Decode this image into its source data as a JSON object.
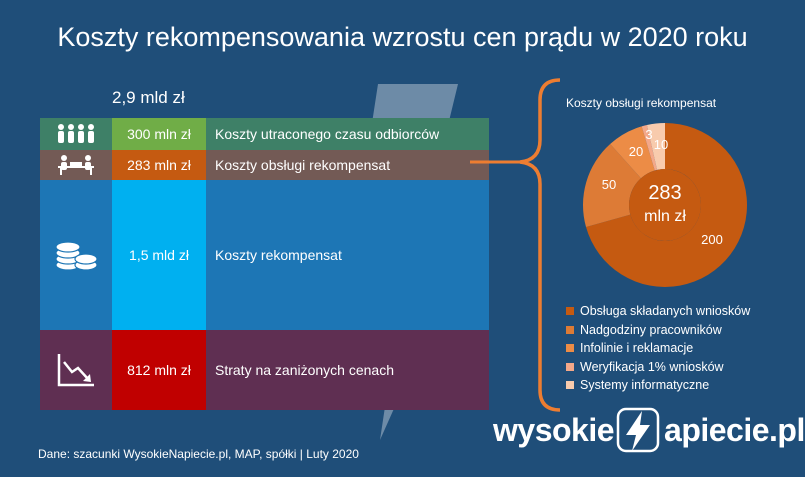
{
  "title": "Koszty rekompensowania wzrostu cen prądu w 2020 roku",
  "total": "2,9 mld zł",
  "rows": [
    {
      "icon": "people-icon",
      "value": "300 mln zł",
      "label": "Koszty utraconego czasu odbiorców",
      "row_color": "#3e8067",
      "value_color": "#70ad47"
    },
    {
      "icon": "office-workers-icon",
      "value": "283 mln zł",
      "label": "Koszty obsługi rekompensat",
      "row_color": "#735a55",
      "value_color": "#c55a11"
    },
    {
      "icon": "coins-icon",
      "value": "1,5 mld zł",
      "label": "Koszty rekompensat",
      "row_color": "#1d76b5",
      "value_color": "#00b0f0"
    },
    {
      "icon": "declining-chart-icon",
      "value": "812 mln zł",
      "label": "Straty na zaniżonych cenach",
      "row_color": "#5f2f52",
      "value_color": "#c00000"
    }
  ],
  "chart_data": {
    "type": "pie",
    "title": "Koszty obsługi rekompensat",
    "center_label": [
      "283",
      "mln zł"
    ],
    "categories": [
      "Obsługa składanych wniosków",
      "Nadgodziny pracowników",
      "Infolinie i reklamacje",
      "Weryfikacja 1% wniosków",
      "Systemy informatyczne"
    ],
    "values": [
      200,
      50,
      20,
      3,
      10
    ],
    "colors": [
      "#c55a11",
      "#dd7b36",
      "#ec8c46",
      "#f4a889",
      "#f8cbad"
    ],
    "legend_position": "bottom"
  },
  "source": "Dane: szacunki WysokieNapiecie.pl, MAP,  spółki |  Luty 2020",
  "logo": {
    "left": "wysokie",
    "right": "apiecie.pl"
  }
}
